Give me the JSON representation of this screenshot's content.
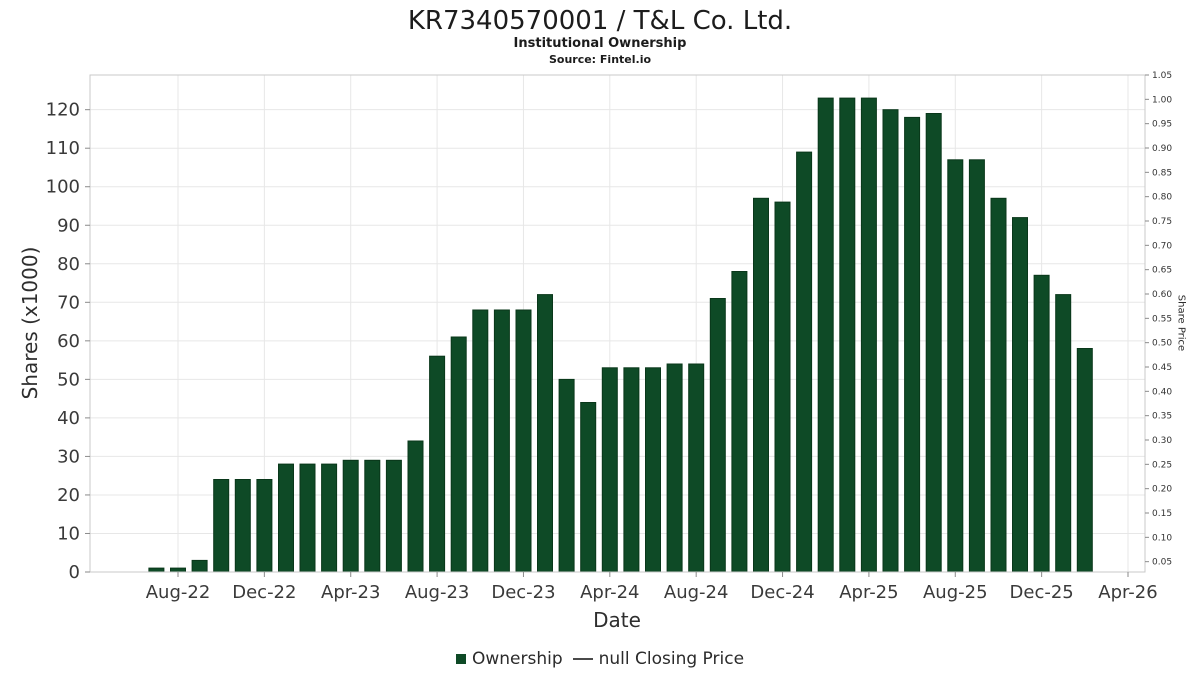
{
  "chart_data": {
    "type": "bar",
    "title": "KR7340570001 / T&L Co. Ltd.",
    "subtitle": "Institutional Ownership",
    "source": "Source: Fintel.io",
    "xlabel": "Date",
    "ylabel_left": "Shares (x1000)",
    "ylabel_right": "Share Price",
    "categories": [
      "Jul-22",
      "Aug-22",
      "Sep-22",
      "Oct-22",
      "Nov-22",
      "Dec-22",
      "Jan-23",
      "Feb-23",
      "Mar-23",
      "Apr-23",
      "May-23",
      "Jun-23",
      "Jul-23",
      "Aug-23",
      "Sep-23",
      "Oct-23",
      "Nov-23",
      "Dec-23",
      "Jan-24",
      "Feb-24",
      "Mar-24",
      "Apr-24",
      "May-24",
      "Jun-24",
      "Jul-24",
      "Aug-24",
      "Sep-24",
      "Oct-24",
      "Nov-24",
      "Dec-24",
      "Jan-25",
      "Feb-25",
      "Mar-25",
      "Apr-25",
      "May-25",
      "Jun-25",
      "Jul-25",
      "Aug-25",
      "Sep-25",
      "Oct-25",
      "Nov-25",
      "Dec-25",
      "Jan-26",
      "Feb-26"
    ],
    "values": [
      1,
      1,
      3,
      24,
      24,
      24,
      28,
      28,
      28,
      29,
      29,
      29,
      34,
      56,
      61,
      68,
      68,
      68,
      72,
      50,
      44,
      53,
      53,
      53,
      54,
      54,
      71,
      78,
      97,
      96,
      109,
      123,
      123,
      123,
      120,
      118,
      119,
      107,
      107,
      97,
      92,
      77,
      72,
      58
    ],
    "left_ticks": [
      0,
      10,
      20,
      30,
      40,
      50,
      60,
      70,
      80,
      90,
      100,
      110,
      120
    ],
    "right_ticks": [
      0.05,
      0.1,
      0.15,
      0.2,
      0.25,
      0.3,
      0.35,
      0.4,
      0.45,
      0.5,
      0.55,
      0.6,
      0.65,
      0.7,
      0.75,
      0.8,
      0.85,
      0.9,
      0.95,
      1.0,
      1.05
    ],
    "x_tick_labels": [
      "Aug-22",
      "Dec-22",
      "Apr-23",
      "Aug-23",
      "Dec-23",
      "Apr-24",
      "Aug-24",
      "Dec-24",
      "Apr-25",
      "Aug-25",
      "Dec-25",
      "Apr-26"
    ],
    "x_tick_month_offsets": [
      1,
      5,
      9,
      13,
      17,
      21,
      25,
      29,
      33,
      37,
      41,
      45
    ],
    "ylim_left": [
      0,
      129
    ],
    "ylim_right": [
      0,
      1.05
    ],
    "grid": true,
    "legend_position": "bottom-center",
    "legend": [
      {
        "label": "Ownership",
        "marker": "square"
      },
      {
        "label": "null Closing Price",
        "marker": "line"
      }
    ],
    "colors": {
      "bar": "#0E4A26",
      "bar_border": "#09371A",
      "grid": "#e7e7e7",
      "axis_border": "#c9c9c9",
      "tick_text": "#3a3a3a",
      "right_tick_text": "#333333"
    }
  }
}
